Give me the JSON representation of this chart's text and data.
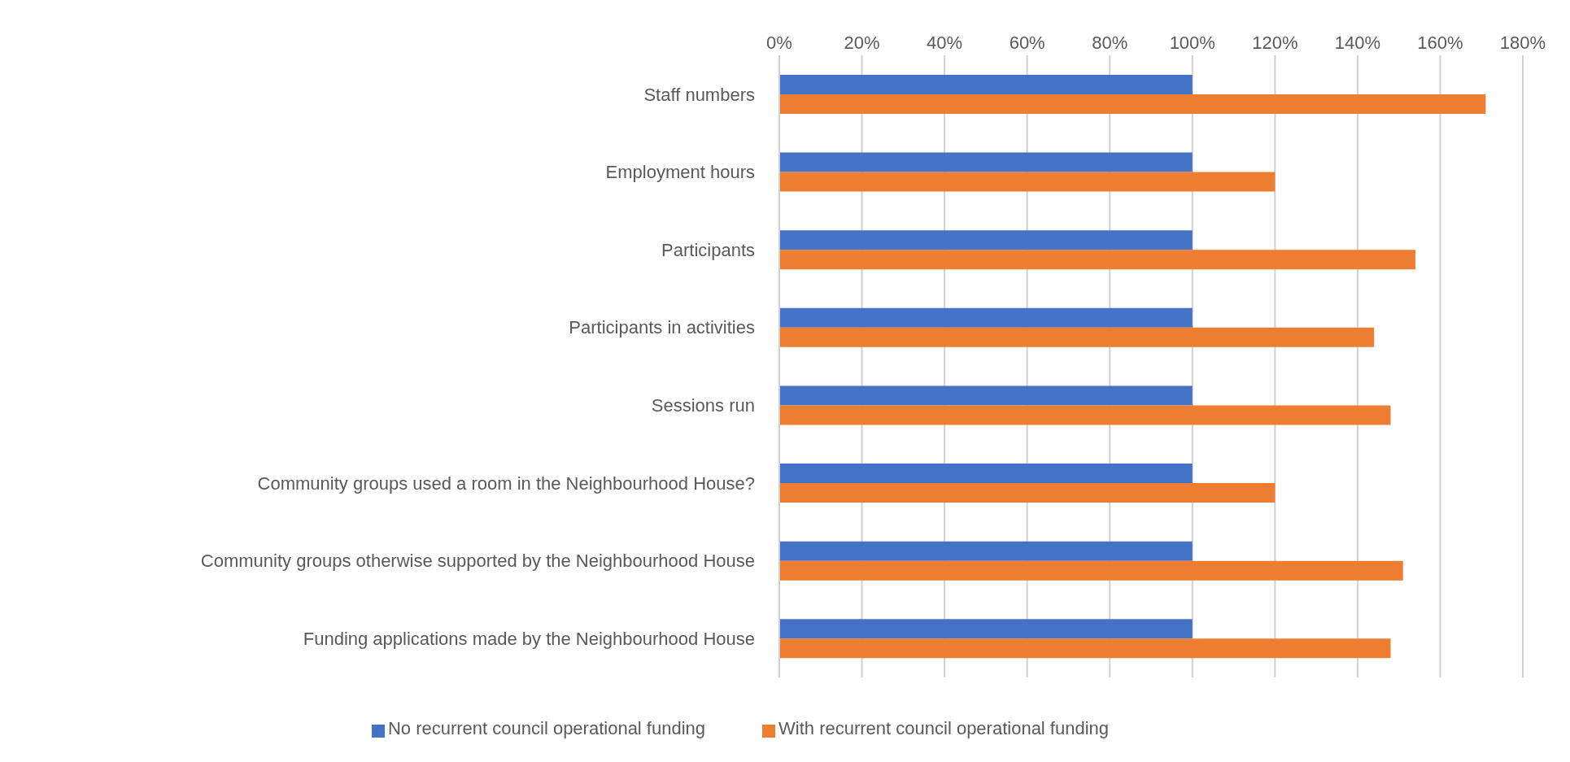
{
  "chart_data": {
    "type": "bar",
    "orientation": "horizontal",
    "categories": [
      "Staff numbers",
      "Employment hours",
      "Participants",
      "Participants in activities",
      "Sessions run",
      "Community groups used a room in the Neighbourhood House?",
      "Community groups otherwise supported by the Neighbourhood House",
      "Funding applications made by the Neighbourhood House"
    ],
    "series": [
      {
        "name": "No recurrent council operational funding",
        "color": "#4472c4",
        "values": [
          100,
          100,
          100,
          100,
          100,
          100,
          100,
          100
        ]
      },
      {
        "name": "With recurrent council operational funding",
        "color": "#ed7d31",
        "values": [
          171,
          120,
          154,
          144,
          148,
          120,
          151,
          148
        ]
      }
    ],
    "xlim": [
      0,
      180
    ],
    "xticks": [
      {
        "value": 0,
        "label": "0%"
      },
      {
        "value": 20,
        "label": "20%"
      },
      {
        "value": 40,
        "label": "40%"
      },
      {
        "value": 60,
        "label": "60%"
      },
      {
        "value": 80,
        "label": "80%"
      },
      {
        "value": 100,
        "label": "100%"
      },
      {
        "value": 120,
        "label": "120%"
      },
      {
        "value": 140,
        "label": "140%"
      },
      {
        "value": 160,
        "label": "160%"
      },
      {
        "value": 180,
        "label": "180%"
      }
    ],
    "grid": "x",
    "legend": "bottom"
  }
}
